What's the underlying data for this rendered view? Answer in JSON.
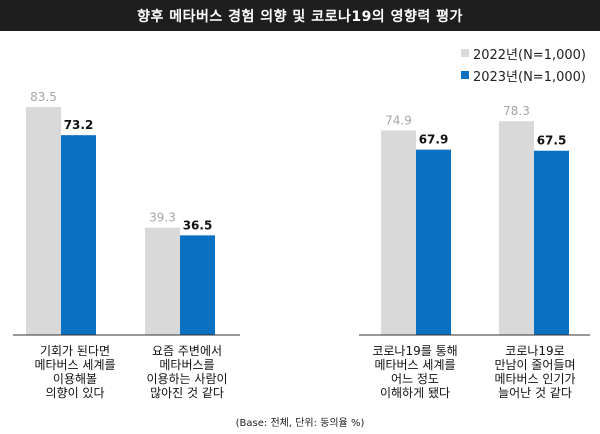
{
  "header": {
    "title": "향후 메타버스 경험 의향 및 코로나19의 영향력 평가"
  },
  "footnote": "(Base: 전체, 단위: 동의율 %)",
  "colors": {
    "series_2022": "#d9d9d9",
    "series_2023": "#0a70c2",
    "label_2022": "#a6a6a6",
    "label_2023": "#111111",
    "axis": "#333333"
  },
  "chart_data": {
    "type": "bar",
    "categories": [
      "기회가 된다면\n메타버스 세계를\n이용해볼\n의향이 있다",
      "요즘 주변에서\n메타버스를\n이용하는 사람이\n많아진 것 같다",
      "코로나19를 통해\n메타버스 세계를\n어느 정도\n이해하게 됐다",
      "코로나19로\n만남이 줄어들며\n메타버스 인기가\n늘어난 것 같다"
    ],
    "series": [
      {
        "name": "2022년(N=1,000)",
        "values": [
          83.5,
          39.3,
          74.9,
          78.3
        ],
        "labels": [
          "83.5",
          "39.3",
          "74.9",
          "78.3"
        ]
      },
      {
        "name": "2023년(N=1,000)",
        "values": [
          73.2,
          36.5,
          67.9,
          67.5
        ],
        "labels": [
          "73.2",
          "36.5",
          "67.9",
          "67.5"
        ]
      }
    ],
    "ylim": [
      0,
      100
    ],
    "legend": "top-right"
  }
}
